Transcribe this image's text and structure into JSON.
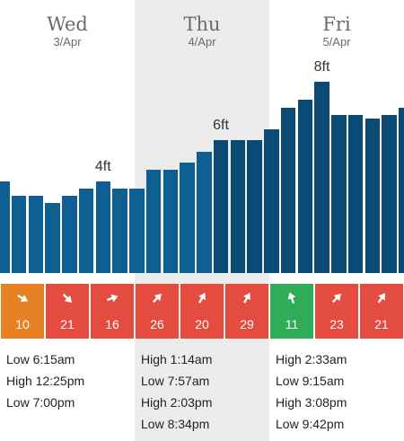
{
  "days": [
    {
      "name": "Wed",
      "date": "3/Apr",
      "peak": "4ft",
      "tides": [
        "Low 6:15am",
        "High 12:25pm",
        "Low 7:00pm"
      ]
    },
    {
      "name": "Thu",
      "date": "4/Apr",
      "peak": "6ft",
      "tides": [
        "High 1:14am",
        "Low 7:57am",
        "High 2:03pm",
        "Low 8:34pm"
      ]
    },
    {
      "name": "Fri",
      "date": "5/Apr",
      "peak": "8ft",
      "tides": [
        "High 2:33am",
        "Low 9:15am",
        "High 3:08pm",
        "Low 9:42pm"
      ]
    }
  ],
  "swell_levels": [
    0.25,
    0.21,
    0.21,
    0.19,
    0.21,
    0.23,
    0.25,
    0.23,
    0.23,
    0.28,
    0.28,
    0.3,
    0.33,
    0.36,
    0.36,
    0.36,
    0.39,
    0.45,
    0.47,
    0.52,
    0.43,
    0.43,
    0.42,
    0.43,
    0.45
  ],
  "wind": [
    {
      "speed": "10",
      "status": "orange",
      "direction": "arrow-down-right-icon",
      "angle": 120
    },
    {
      "speed": "21",
      "status": "red",
      "direction": "arrow-down-right-icon",
      "angle": 135
    },
    {
      "speed": "16",
      "status": "red",
      "direction": "arrow-right-icon",
      "angle": 70
    },
    {
      "speed": "26",
      "status": "red",
      "direction": "arrow-up-right-icon",
      "angle": 45
    },
    {
      "speed": "20",
      "status": "red",
      "direction": "arrow-up-right-icon",
      "angle": 30
    },
    {
      "speed": "29",
      "status": "red",
      "direction": "arrow-up-right-icon",
      "angle": 30
    },
    {
      "speed": "11",
      "status": "green",
      "direction": "arrow-up-icon",
      "angle": -20
    },
    {
      "speed": "23",
      "status": "red",
      "direction": "arrow-up-right-icon",
      "angle": 45
    },
    {
      "speed": "21",
      "status": "red",
      "direction": "arrow-up-right-icon",
      "angle": 35
    }
  ],
  "colors": {
    "bar": "#0f5f92",
    "bar_dark": "#0a4a75",
    "day_shade": "#ececec",
    "wind_red": "#e34c3f",
    "wind_orange": "#e88125",
    "wind_green": "#2fac58"
  }
}
